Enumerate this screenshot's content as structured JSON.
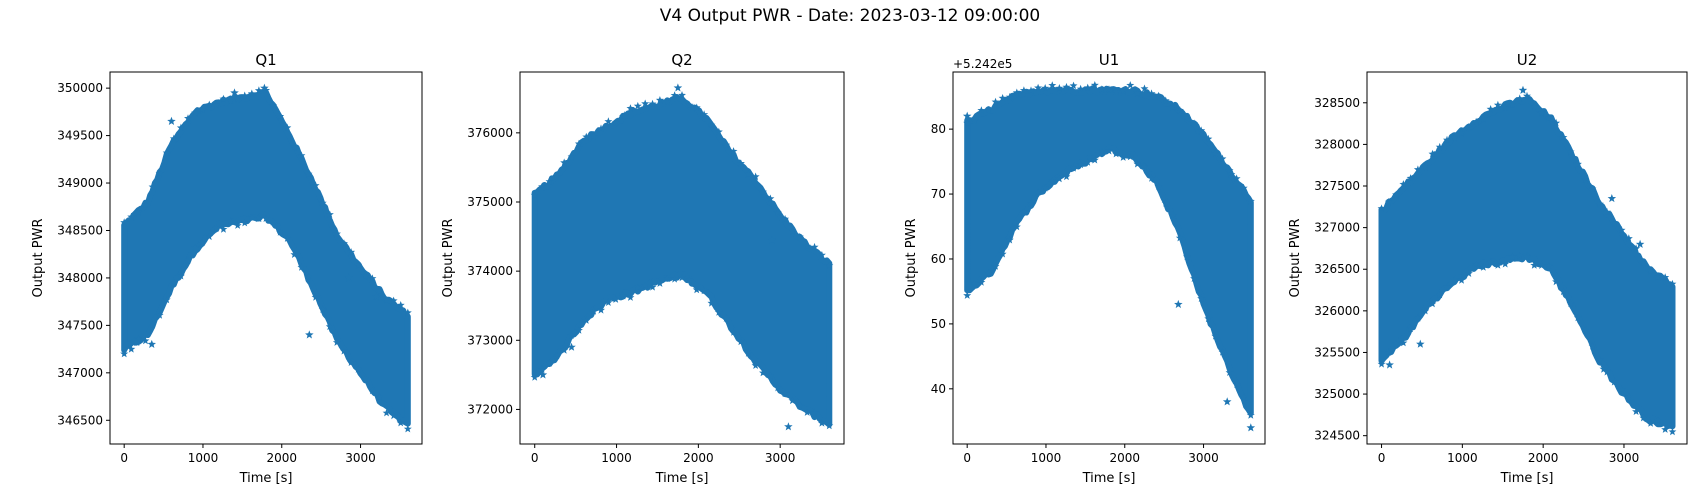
{
  "suptitle": "V4 Output PWR - Date: 2023-03-12 09:00:00",
  "colors": {
    "series": "#1f77b4",
    "axes": "#000000"
  },
  "chart_data": [
    {
      "type": "scatter",
      "title": "Q1",
      "xlabel": "Time [s]",
      "ylabel": "Output PWR",
      "marker": "star",
      "offset_label": "",
      "xlim": [
        -180,
        3780
      ],
      "ylim": [
        346250,
        350170
      ],
      "xticks": [
        0,
        1000,
        2000,
        3000
      ],
      "xtick_labels": [
        "0",
        "1000",
        "2000",
        "3000"
      ],
      "yticks": [
        346500,
        347000,
        347500,
        348000,
        348500,
        349000,
        349500,
        350000
      ],
      "ytick_labels": [
        "346500",
        "347000",
        "347500",
        "348000",
        "348500",
        "349000",
        "349500",
        "350000"
      ],
      "envelope": {
        "x": [
          0,
          300,
          600,
          900,
          1200,
          1500,
          1800,
          2100,
          2400,
          2700,
          3000,
          3300,
          3600
        ],
        "upper": [
          348550,
          348800,
          349400,
          349750,
          349850,
          349900,
          349950,
          349500,
          349000,
          348450,
          348100,
          347800,
          347600
        ],
        "lower": [
          347250,
          347400,
          347900,
          348300,
          348550,
          348600,
          348650,
          348400,
          347900,
          347350,
          347000,
          346650,
          346450
        ]
      },
      "outliers": [
        [
          1400,
          349950
        ],
        [
          1780,
          350000
        ],
        [
          600,
          349650
        ],
        [
          350,
          347300
        ],
        [
          2850,
          348000
        ],
        [
          3200,
          347800
        ],
        [
          160,
          347320
        ],
        [
          2350,
          347400
        ]
      ]
    },
    {
      "type": "scatter",
      "title": "Q2",
      "xlabel": "Time [s]",
      "ylabel": "Output PWR",
      "marker": "star",
      "offset_label": "",
      "xlim": [
        -180,
        3780
      ],
      "ylim": [
        371500,
        376880
      ],
      "xticks": [
        0,
        1000,
        2000,
        3000
      ],
      "xtick_labels": [
        "0",
        "1000",
        "2000",
        "3000"
      ],
      "yticks": [
        372000,
        373000,
        374000,
        375000,
        376000
      ],
      "ytick_labels": [
        "372000",
        "373000",
        "374000",
        "375000",
        "376000"
      ],
      "envelope": {
        "x": [
          0,
          300,
          600,
          900,
          1200,
          1500,
          1800,
          2100,
          2400,
          2700,
          3000,
          3300,
          3600
        ],
        "upper": [
          375100,
          375400,
          375900,
          376100,
          376300,
          376400,
          376500,
          376200,
          375700,
          375300,
          374800,
          374400,
          374100
        ],
        "lower": [
          372500,
          372800,
          373300,
          373600,
          373700,
          373850,
          373950,
          373700,
          373200,
          372700,
          372300,
          372000,
          371800
        ]
      },
      "outliers": [
        [
          1750,
          376650
        ],
        [
          3100,
          371750
        ],
        [
          100,
          372500
        ],
        [
          2900,
          374450
        ],
        [
          450,
          372900
        ],
        [
          1100,
          376250
        ]
      ]
    },
    {
      "type": "scatter",
      "title": "U1",
      "xlabel": "Time [s]",
      "ylabel": "Output PWR",
      "marker": "star",
      "offset_label": "+5.242e5",
      "xlim": [
        -180,
        3780
      ],
      "ylim": [
        31.5,
        88.8
      ],
      "xticks": [
        0,
        1000,
        2000,
        3000
      ],
      "xtick_labels": [
        "0",
        "1000",
        "2000",
        "3000"
      ],
      "yticks": [
        40,
        50,
        60,
        70,
        80
      ],
      "ytick_labels": [
        "40",
        "50",
        "60",
        "70",
        "80"
      ],
      "envelope": {
        "x": [
          0,
          300,
          600,
          900,
          1200,
          1500,
          1800,
          2100,
          2400,
          2700,
          3000,
          3300,
          3600
        ],
        "upper": [
          81,
          83,
          85,
          86,
          86,
          86,
          86,
          86,
          85,
          83,
          79,
          74,
          69
        ],
        "lower": [
          55,
          58,
          65,
          70,
          73,
          75,
          77,
          76,
          72,
          64,
          53,
          44,
          36
        ]
      },
      "outliers": [
        [
          0,
          82
        ],
        [
          3600,
          34
        ],
        [
          3300,
          38
        ],
        [
          2680,
          53
        ],
        [
          3350,
          73
        ]
      ]
    },
    {
      "type": "scatter",
      "title": "U2",
      "xlabel": "Time [s]",
      "ylabel": "Output PWR",
      "marker": "star",
      "offset_label": "",
      "xlim": [
        -180,
        3780
      ],
      "ylim": [
        324400,
        328870
      ],
      "xticks": [
        0,
        1000,
        2000,
        3000
      ],
      "xtick_labels": [
        "0",
        "1000",
        "2000",
        "3000"
      ],
      "yticks": [
        324500,
        325000,
        325500,
        326000,
        326500,
        327000,
        327500,
        328000,
        328500
      ],
      "ytick_labels": [
        "324500",
        "325000",
        "325500",
        "326000",
        "326500",
        "327000",
        "327500",
        "328000",
        "328500"
      ],
      "envelope": {
        "x": [
          0,
          300,
          600,
          900,
          1200,
          1500,
          1800,
          2100,
          2400,
          2700,
          3000,
          3300,
          3600
        ],
        "upper": [
          327200,
          327500,
          327800,
          328100,
          328300,
          328450,
          328550,
          328300,
          327800,
          327300,
          326900,
          326500,
          326300
        ],
        "lower": [
          325400,
          325700,
          326100,
          326350,
          326550,
          326600,
          326650,
          326500,
          326000,
          325400,
          325000,
          324700,
          324600
        ]
      },
      "outliers": [
        [
          1750,
          328650
        ],
        [
          100,
          325350
        ],
        [
          3200,
          326800
        ],
        [
          480,
          325600
        ],
        [
          2750,
          325300
        ],
        [
          2850,
          327350
        ]
      ]
    }
  ]
}
